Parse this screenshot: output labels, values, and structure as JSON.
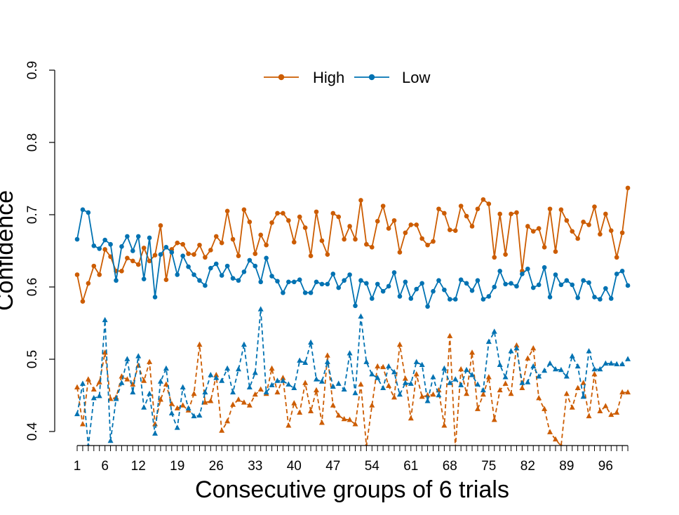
{
  "chart_data": {
    "type": "line",
    "xlabel": "Consecutive groups of 6 trials",
    "ylabel": "Confidence",
    "ylim": [
      0.4,
      0.9
    ],
    "yticks": [
      "0.4",
      "0.5",
      "0.6",
      "0.7",
      "0.8",
      "0.9"
    ],
    "xticks": [
      "1",
      "6",
      "12",
      "19",
      "26",
      "33",
      "40",
      "47",
      "54",
      "61",
      "68",
      "75",
      "82",
      "89",
      "96"
    ],
    "legend": [
      {
        "name": "High",
        "color": "#cc5c00"
      },
      {
        "name": "Low",
        "color": "#0072b2"
      }
    ],
    "legend_position": "top",
    "series": [
      {
        "name": "High",
        "color": "#cc5c00",
        "linestyle": "solid",
        "marker": "circle",
        "values": [
          0.617,
          0.58,
          0.605,
          0.629,
          0.617,
          0.652,
          0.642,
          0.622,
          0.622,
          0.64,
          0.636,
          0.631,
          0.654,
          0.636,
          0.644,
          0.685,
          0.61,
          0.652,
          0.661,
          0.659,
          0.646,
          0.645,
          0.658,
          0.641,
          0.651,
          0.67,
          0.661,
          0.705,
          0.666,
          0.643,
          0.707,
          0.69,
          0.646,
          0.672,
          0.658,
          0.689,
          0.702,
          0.702,
          0.692,
          0.662,
          0.697,
          0.682,
          0.643,
          0.704,
          0.664,
          0.645,
          0.702,
          0.697,
          0.666,
          0.684,
          0.666,
          0.72,
          0.659,
          0.655,
          0.691,
          0.712,
          0.681,
          0.692,
          0.648,
          0.675,
          0.686,
          0.686,
          0.667,
          0.658,
          0.663,
          0.708,
          0.702,
          0.679,
          0.678,
          0.712,
          0.698,
          0.684,
          0.708,
          0.721,
          0.715,
          0.641,
          0.701,
          0.645,
          0.701,
          0.703,
          0.622,
          0.684,
          0.677,
          0.681,
          0.655,
          0.708,
          0.649,
          0.707,
          0.692,
          0.677,
          0.667,
          0.69,
          0.686,
          0.711,
          0.673,
          0.701,
          0.678,
          0.641,
          0.675,
          0.737
        ]
      },
      {
        "name": "Low",
        "color": "#0072b2",
        "linestyle": "solid",
        "marker": "circle",
        "values": [
          0.666,
          0.707,
          0.703,
          0.657,
          0.653,
          0.665,
          0.659,
          0.609,
          0.656,
          0.67,
          0.65,
          0.67,
          0.611,
          0.668,
          0.586,
          0.645,
          0.655,
          0.648,
          0.617,
          0.643,
          0.628,
          0.617,
          0.609,
          0.602,
          0.626,
          0.632,
          0.616,
          0.629,
          0.612,
          0.609,
          0.621,
          0.637,
          0.629,
          0.607,
          0.64,
          0.615,
          0.608,
          0.592,
          0.607,
          0.607,
          0.61,
          0.592,
          0.592,
          0.607,
          0.604,
          0.604,
          0.618,
          0.599,
          0.609,
          0.617,
          0.574,
          0.609,
          0.605,
          0.584,
          0.604,
          0.594,
          0.601,
          0.62,
          0.587,
          0.607,
          0.584,
          0.597,
          0.605,
          0.573,
          0.594,
          0.609,
          0.596,
          0.583,
          0.583,
          0.61,
          0.605,
          0.595,
          0.609,
          0.583,
          0.587,
          0.6,
          0.622,
          0.604,
          0.605,
          0.601,
          0.618,
          0.625,
          0.599,
          0.603,
          0.627,
          0.586,
          0.617,
          0.603,
          0.609,
          0.603,
          0.585,
          0.609,
          0.606,
          0.586,
          0.583,
          0.598,
          0.584,
          0.618,
          0.622,
          0.602
        ]
      },
      {
        "name": "",
        "color": "#cc5c00",
        "linestyle": "dashed",
        "marker": "triangle",
        "values": [
          0.461,
          0.41,
          0.472,
          0.458,
          0.468,
          0.509,
          0.445,
          0.447,
          0.476,
          0.472,
          0.465,
          0.491,
          0.47,
          0.496,
          0.41,
          0.444,
          0.465,
          0.438,
          0.432,
          0.436,
          0.429,
          0.452,
          0.52,
          0.44,
          0.442,
          0.478,
          0.401,
          0.414,
          0.437,
          0.444,
          0.44,
          0.436,
          0.451,
          0.458,
          0.452,
          0.487,
          0.454,
          0.474,
          0.408,
          0.439,
          0.426,
          0.467,
          0.428,
          0.457,
          0.412,
          0.505,
          0.436,
          0.422,
          0.417,
          0.416,
          0.41,
          0.465,
          0.38,
          0.436,
          0.49,
          0.489,
          0.463,
          0.447,
          0.52,
          0.473,
          0.418,
          0.479,
          0.448,
          0.45,
          0.451,
          0.457,
          0.408,
          0.532,
          0.378,
          0.486,
          0.452,
          0.509,
          0.431,
          0.451,
          0.475,
          0.416,
          0.457,
          0.466,
          0.452,
          0.519,
          0.46,
          0.501,
          0.515,
          0.446,
          0.431,
          0.399,
          0.389,
          0.38,
          0.452,
          0.433,
          0.46,
          0.467,
          0.421,
          0.479,
          0.428,
          0.435,
          0.423,
          0.426,
          0.454,
          0.454
        ]
      },
      {
        "name": "",
        "color": "#0072b2",
        "linestyle": "dashed",
        "marker": "triangle",
        "values": [
          0.424,
          0.466,
          0.38,
          0.446,
          0.449,
          0.554,
          0.387,
          0.445,
          0.467,
          0.5,
          0.454,
          0.504,
          0.433,
          0.452,
          0.397,
          0.469,
          0.487,
          0.425,
          0.405,
          0.461,
          0.432,
          0.421,
          0.422,
          0.454,
          0.478,
          0.474,
          0.47,
          0.487,
          0.454,
          0.486,
          0.52,
          0.461,
          0.481,
          0.569,
          0.454,
          0.464,
          0.47,
          0.47,
          0.465,
          0.46,
          0.498,
          0.495,
          0.523,
          0.472,
          0.469,
          0.496,
          0.462,
          0.466,
          0.458,
          0.508,
          0.453,
          0.559,
          0.496,
          0.479,
          0.474,
          0.46,
          0.49,
          0.482,
          0.451,
          0.467,
          0.466,
          0.496,
          0.492,
          0.442,
          0.475,
          0.45,
          0.487,
          0.467,
          0.472,
          0.464,
          0.485,
          0.478,
          0.465,
          0.457,
          0.524,
          0.538,
          0.492,
          0.475,
          0.511,
          0.515,
          0.467,
          0.468,
          0.49,
          0.476,
          0.484,
          0.494,
          0.486,
          0.485,
          0.476,
          0.504,
          0.49,
          0.448,
          0.511,
          0.486,
          0.486,
          0.494,
          0.494,
          0.493,
          0.493,
          0.5
        ]
      }
    ]
  }
}
